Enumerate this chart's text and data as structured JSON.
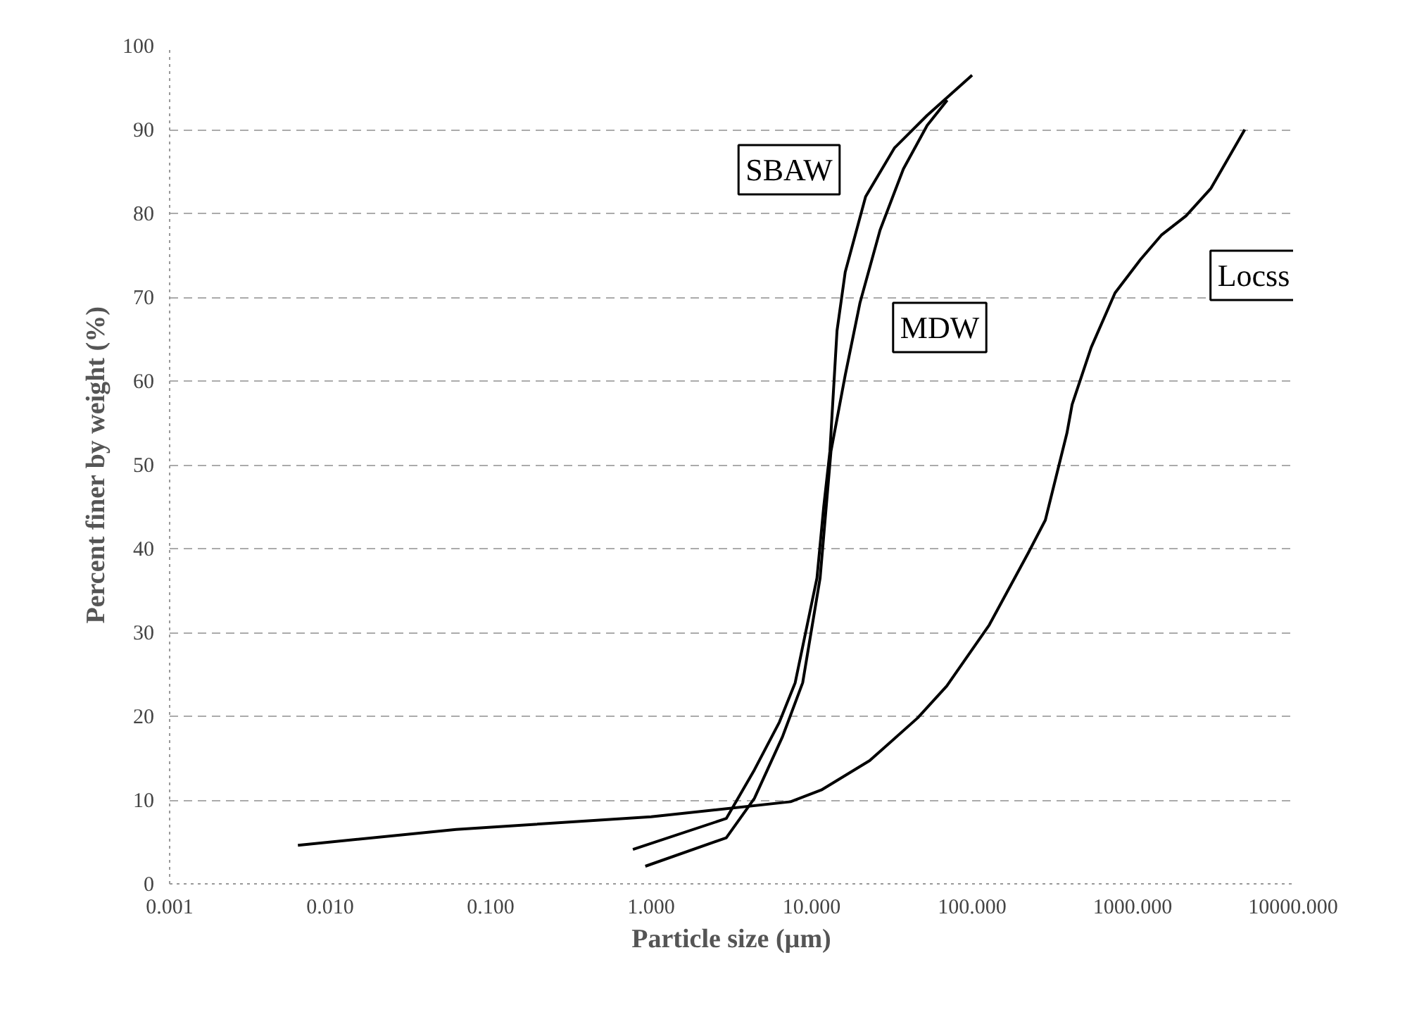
{
  "chart_data": {
    "type": "line",
    "xlabel": "Particle size (µm)",
    "ylabel": "Percent finer by weight (%)",
    "log": "x",
    "grid": "y",
    "line_style": "solid",
    "marker": "none",
    "xlim": [
      0.001,
      10000
    ],
    "ylim": [
      0,
      100
    ],
    "xticks": [
      {
        "value": 0.001,
        "label": "0.001"
      },
      {
        "value": 0.01,
        "label": "0.010"
      },
      {
        "value": 0.1,
        "label": "0.100"
      },
      {
        "value": 1,
        "label": "1.000"
      },
      {
        "value": 10,
        "label": "10.000"
      },
      {
        "value": 100,
        "label": "100.000"
      },
      {
        "value": 1000,
        "label": "1000.000"
      },
      {
        "value": 10000,
        "label": "10000.000"
      }
    ],
    "yticks": [
      0,
      10,
      20,
      30,
      40,
      50,
      60,
      70,
      80,
      90,
      100
    ],
    "series": [
      {
        "name": "SBAW",
        "color": "#000000",
        "x": [
          0.77,
          2.94,
          4.4,
          6.3,
          7.9,
          10.8,
          11.9,
          13,
          14.4,
          16.2,
          21.7,
          32.8,
          52.5,
          100
        ],
        "values": [
          4.1,
          7.8,
          13.6,
          19.3,
          24,
          36.5,
          45,
          51.6,
          66,
          73,
          82,
          87.8,
          91.7,
          96.5
        ]
      },
      {
        "name": "MDW",
        "color": "#000000",
        "x": [
          0.92,
          2.94,
          4.4,
          6.6,
          8.8,
          11.3,
          13.2,
          16.2,
          20,
          26.7,
          37.3,
          52.5,
          70
        ],
        "values": [
          2.1,
          5.5,
          10.2,
          17.6,
          24,
          36.5,
          51.6,
          60.7,
          69.3,
          78,
          85.3,
          90.5,
          93.5
        ]
      },
      {
        "name": "Locss",
        "color": "#000000",
        "x": [
          0.0063,
          0.061,
          1,
          7.4,
          11.5,
          23,
          45.8,
          69.5,
          128,
          224,
          286,
          390,
          420,
          552,
          777,
          1120,
          1510,
          2150,
          3080,
          5000
        ],
        "values": [
          4.6,
          6.5,
          8,
          9.8,
          11.2,
          14.7,
          19.8,
          23.6,
          30.9,
          39.5,
          43.4,
          53.8,
          57.2,
          64,
          70.5,
          74.5,
          77.4,
          79.7,
          83,
          90
        ]
      }
    ]
  }
}
